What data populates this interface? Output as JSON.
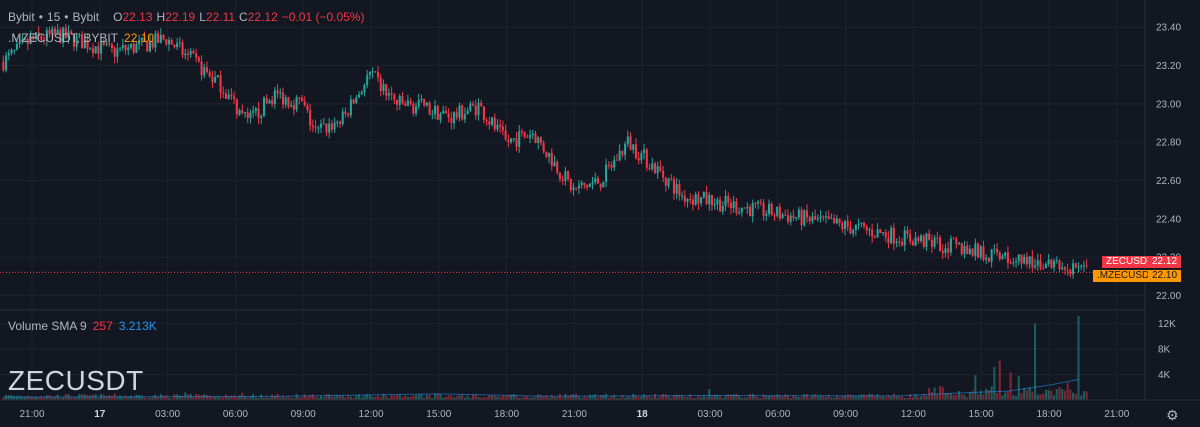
{
  "header": {
    "exchange": "Bybit",
    "dot": "•",
    "interval": "15",
    "source": "Bybit",
    "open_label": "O",
    "open": "22.13",
    "high_label": "H",
    "high": "22.19",
    "low_label": "L",
    "low": "22.11",
    "close_label": "C",
    "close": "22.12",
    "change": "−0.01 (−0.05%)"
  },
  "overlay": {
    "symbol": ".MZECUSDT, BYBIT",
    "value": "22.10"
  },
  "volume_legend": {
    "label": "Volume SMA 9",
    "value1": "257",
    "value2": "3.213K"
  },
  "watermark": "ZECUSDT",
  "price_tags": [
    {
      "symbol": "ZECUSDT",
      "price": "22.12",
      "color": "#f23645"
    },
    {
      "symbol": ".MZECUSDT",
      "price": "22.10",
      "color": "#ff9800"
    }
  ],
  "colors": {
    "up": "#26a69a",
    "down": "#f23645",
    "sma": "#2196f3"
  },
  "chart_data": {
    "type": "candlestick",
    "price_axis": {
      "ticks": [
        "23.40",
        "23.20",
        "23.00",
        "22.80",
        "22.60",
        "22.40",
        "22.20",
        "22.00"
      ],
      "range": [
        21.95,
        23.5
      ]
    },
    "volume_axis": {
      "ticks": [
        "12K",
        "8K",
        "4K"
      ],
      "range": [
        0,
        13500
      ]
    },
    "time_axis": [
      "21:00",
      "17",
      "03:00",
      "06:00",
      "09:00",
      "12:00",
      "15:00",
      "18:00",
      "21:00",
      "18",
      "03:00",
      "06:00",
      "09:00",
      "12:00",
      "15:00",
      "18:00",
      "21:00"
    ],
    "last_price": 22.12,
    "close_path": [
      [
        0,
        23.22
      ],
      [
        10,
        23.33
      ],
      [
        20,
        23.36
      ],
      [
        30,
        23.32
      ],
      [
        40,
        23.27
      ],
      [
        50,
        23.3
      ],
      [
        60,
        23.34
      ],
      [
        70,
        23.22
      ],
      [
        80,
        23.1
      ],
      [
        90,
        22.9
      ],
      [
        100,
        23.05
      ],
      [
        110,
        23.0
      ],
      [
        115,
        22.85
      ],
      [
        125,
        22.92
      ],
      [
        135,
        23.15
      ],
      [
        145,
        23.0
      ],
      [
        155,
        22.98
      ],
      [
        165,
        22.93
      ],
      [
        175,
        22.99
      ],
      [
        185,
        22.8
      ],
      [
        195,
        22.85
      ],
      [
        210,
        22.55
      ],
      [
        220,
        22.6
      ],
      [
        230,
        22.8
      ],
      [
        245,
        22.6
      ],
      [
        250,
        22.52
      ]
    ],
    "volume_spikes": [
      [
        67,
        1200
      ],
      [
        88,
        1150
      ],
      [
        154,
        900
      ],
      [
        260,
        1700
      ],
      [
        345,
        2200
      ],
      [
        358,
        3900
      ],
      [
        365,
        5200
      ],
      [
        367,
        6200
      ],
      [
        371,
        4300
      ],
      [
        374,
        3800
      ],
      [
        380,
        12000
      ],
      [
        392,
        2700
      ],
      [
        396,
        13200
      ]
    ],
    "volume_sma": [
      [
        0,
        450
      ],
      [
        100,
        560
      ],
      [
        160,
        950
      ],
      [
        200,
        600
      ],
      [
        260,
        700
      ],
      [
        330,
        650
      ],
      [
        350,
        1050
      ],
      [
        370,
        1400
      ],
      [
        385,
        2300
      ],
      [
        396,
        3213
      ]
    ]
  }
}
